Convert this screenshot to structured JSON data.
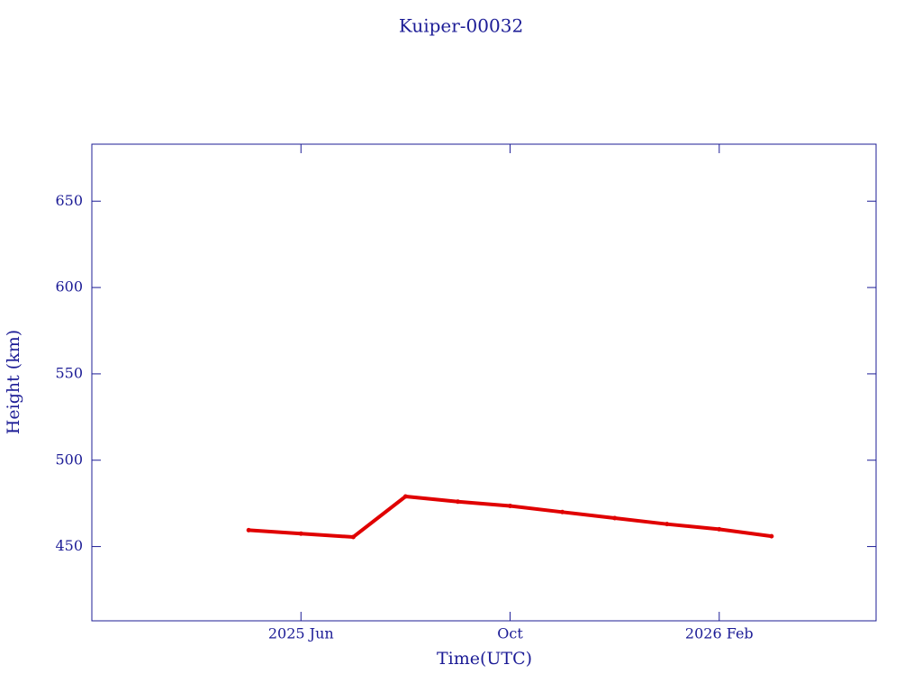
{
  "chart_data": {
    "type": "line",
    "title": "Kuiper-00032",
    "x_label": "Time(UTC)",
    "y_label": "Height (km)",
    "x": [
      "2025-05",
      "2025-06",
      "2025-07",
      "2025-08",
      "2025-09",
      "2025-10",
      "2025-11",
      "2025-12",
      "2026-01",
      "2026-02",
      "2026-03"
    ],
    "values": [
      459.5,
      457.5,
      455.5,
      479,
      476,
      473.5,
      470,
      466.5,
      463,
      460,
      456
    ],
    "color": "#e00000",
    "xlim": [
      "2025-02",
      "2026-05"
    ],
    "xticks": [
      {
        "value": "2025-06",
        "label": "2025 Jun"
      },
      {
        "value": "2025-10",
        "label": "Oct"
      },
      {
        "value": "2026-02",
        "label": "2026 Feb"
      }
    ],
    "ylim": [
      407,
      683
    ],
    "yticks": [
      450,
      500,
      550,
      600,
      650
    ]
  }
}
